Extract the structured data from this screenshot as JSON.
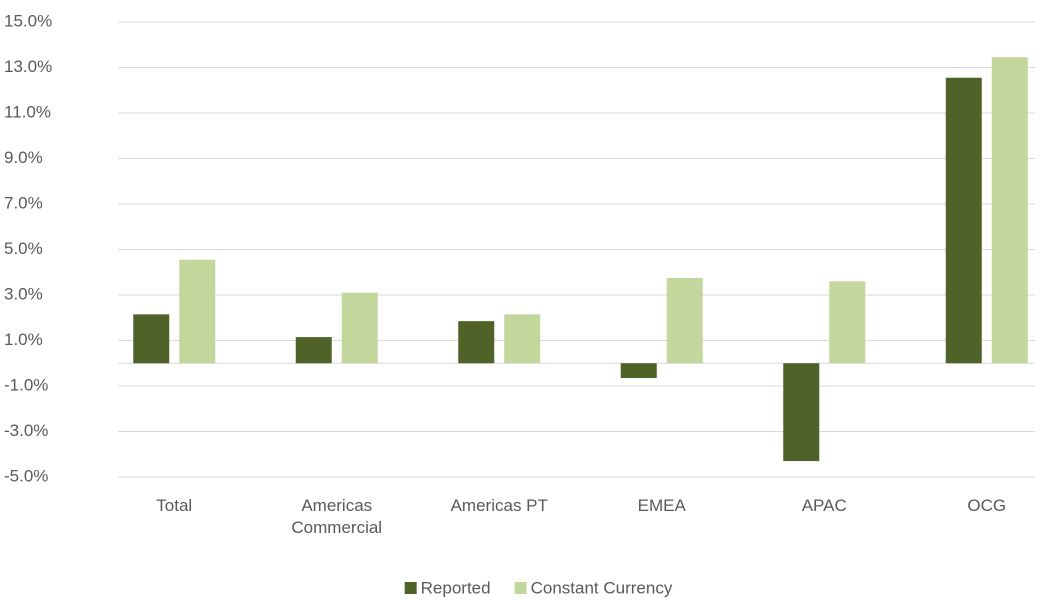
{
  "chart_data": {
    "type": "bar",
    "categories": [
      "Total",
      "Americas Commercial",
      "Americas PT",
      "EMEA",
      "APAC",
      "OCG"
    ],
    "series": [
      {
        "name": "Reported",
        "color": "#4f6228",
        "values": [
          2.15,
          1.15,
          1.85,
          -0.65,
          -4.3,
          12.55
        ]
      },
      {
        "name": "Constant Currency",
        "color": "#c3d69b",
        "values": [
          4.55,
          3.1,
          2.15,
          3.75,
          3.6,
          13.45
        ]
      }
    ],
    "ylim": [
      -5,
      15
    ],
    "yticks": [
      {
        "value": -5,
        "label": "-5.0%"
      },
      {
        "value": -3,
        "label": "-3.0%"
      },
      {
        "value": -1,
        "label": "-1.0%"
      },
      {
        "value": 1,
        "label": "1.0%"
      },
      {
        "value": 3,
        "label": "3.0%"
      },
      {
        "value": 5,
        "label": "5.0%"
      },
      {
        "value": 7,
        "label": "7.0%"
      },
      {
        "value": 9,
        "label": "9.0%"
      },
      {
        "value": 11,
        "label": "11.0%"
      },
      {
        "value": 13,
        "label": "13.0%"
      },
      {
        "value": 15,
        "label": "15.0%"
      }
    ],
    "grid": true,
    "legend": "bottom"
  }
}
